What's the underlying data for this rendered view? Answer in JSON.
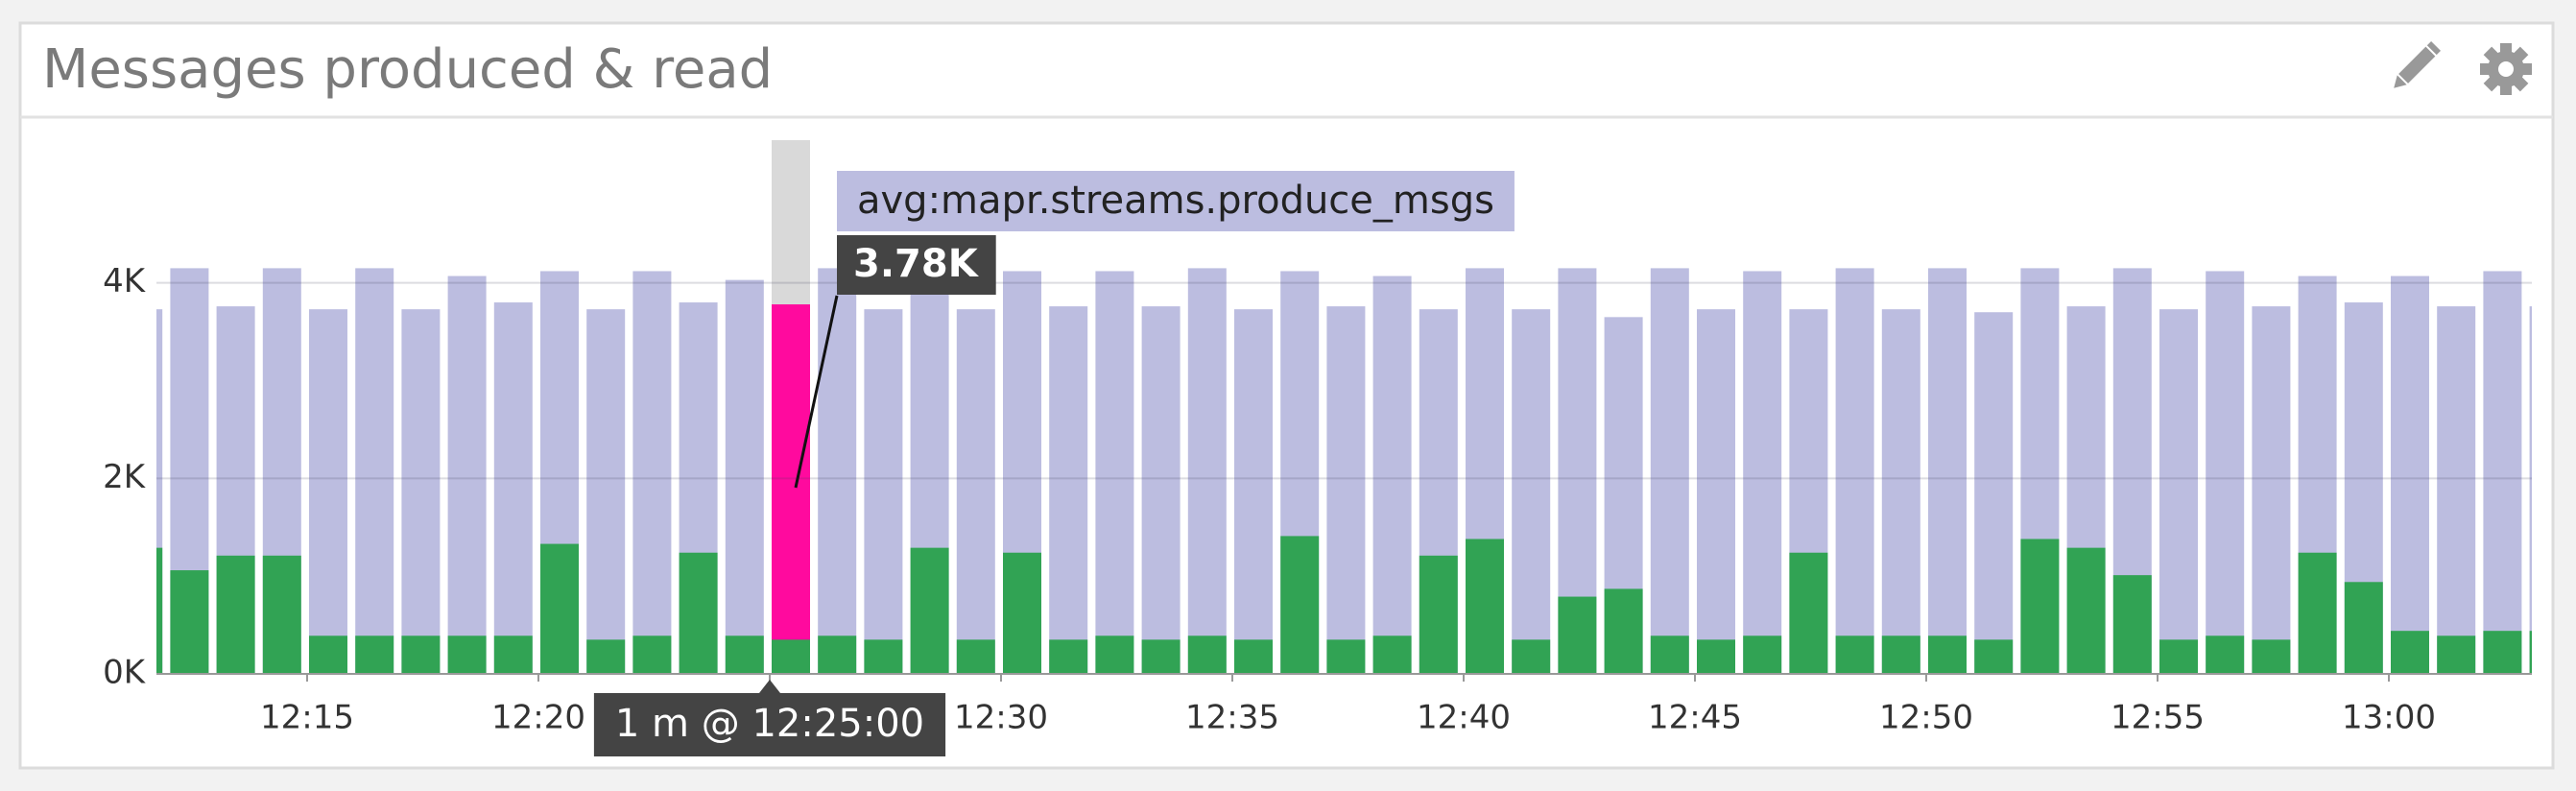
{
  "chart_data": {
    "type": "bar",
    "title": "Messages produced & read",
    "categories": [
      null,
      null,
      null,
      null,
      "12:15",
      null,
      null,
      null,
      null,
      "12:20",
      null,
      null,
      null,
      null,
      "12:25",
      null,
      null,
      null,
      null,
      "12:30",
      null,
      null,
      null,
      null,
      "12:35",
      null,
      null,
      null,
      null,
      "12:40",
      null,
      null,
      null,
      null,
      "12:45",
      null,
      null,
      null,
      null,
      "12:50",
      null,
      null,
      null,
      null,
      "12:55",
      null,
      null,
      null,
      null,
      "13:00",
      null,
      null,
      null
    ],
    "series": [
      {
        "name": "avg:mapr.streams.produce_msgs",
        "color": "#bcbde0",
        "highlight_color": "#ff0a9e",
        "values": [
          3730,
          4150,
          3760,
          4150,
          3730,
          4150,
          3730,
          4070,
          3800,
          4120,
          3730,
          4120,
          3800,
          4030,
          3780,
          4150,
          3730,
          4120,
          3730,
          4120,
          3760,
          4120,
          3760,
          4150,
          3730,
          4120,
          3760,
          4070,
          3730,
          4150,
          3730,
          4150,
          3650,
          4150,
          3730,
          4120,
          3730,
          4150,
          3730,
          4150,
          3700,
          4150,
          3760,
          4150,
          3730,
          4120,
          3760,
          4070,
          3800,
          4070,
          3760,
          4120,
          3760
        ],
        "value_labels": [
          null,
          null,
          null,
          null,
          null,
          null,
          null,
          null,
          null,
          null,
          null,
          null,
          null,
          null,
          "3.78K",
          null,
          null,
          null,
          null,
          null,
          null,
          null,
          null,
          null,
          null,
          null,
          null,
          null,
          null,
          null,
          null,
          null,
          null,
          null,
          null,
          null,
          null,
          null,
          null,
          null,
          null,
          null,
          null,
          null,
          null,
          null,
          null,
          null,
          null,
          null,
          null,
          null,
          null
        ]
      },
      {
        "color": "#31a354",
        "values": [
          1290,
          1060,
          1210,
          1210,
          390,
          390,
          390,
          390,
          390,
          1330,
          350,
          390,
          1240,
          390,
          350,
          390,
          350,
          1290,
          350,
          1240,
          350,
          390,
          350,
          390,
          350,
          1410,
          350,
          390,
          1210,
          1380,
          350,
          790,
          870,
          390,
          350,
          390,
          1240,
          390,
          390,
          390,
          350,
          1380,
          1290,
          1010,
          350,
          390,
          350,
          1240,
          940,
          440,
          390,
          440,
          440
        ]
      }
    ],
    "hover_label": "1 m @ 12:25:00",
    "ylim": [
      0,
      5460
    ],
    "yticks": [
      {
        "value": 0,
        "label": "0K"
      },
      {
        "value": 2000,
        "label": "2K"
      },
      {
        "value": 4000,
        "label": "4K"
      }
    ],
    "grid": true
  }
}
